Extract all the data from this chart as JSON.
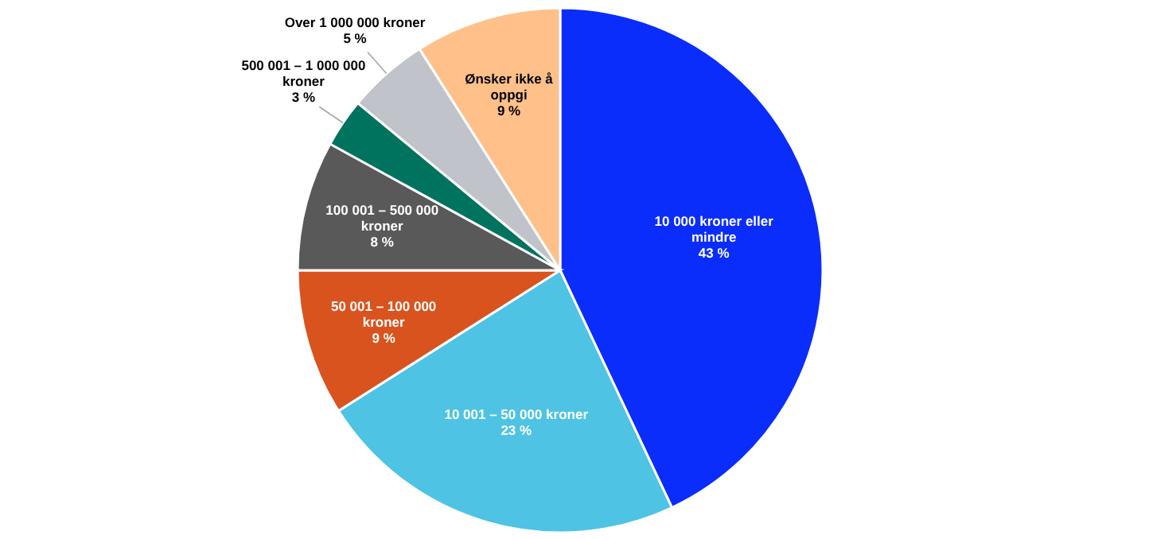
{
  "chart_data": {
    "type": "pie",
    "categories": [
      "10 000 kroner eller mindre",
      "10 001 – 50 000 kroner",
      "50 001 – 100 000 kroner",
      "100 001 – 500 000 kroner",
      "500 001 – 1 000 000 kroner",
      "Over 1 000 000 kroner",
      "Ønsker ikke å oppgi"
    ],
    "values": [
      43,
      23,
      9,
      8,
      3,
      5,
      9
    ],
    "value_labels": [
      "43 %",
      "23 %",
      "9 %",
      "8 %",
      "3 %",
      "5 %",
      "9 %"
    ],
    "colors": [
      "#0a2dfc",
      "#4ec3e4",
      "#d9531e",
      "#595959",
      "#00735f",
      "#c0c3ca",
      "#ffc08a"
    ]
  }
}
